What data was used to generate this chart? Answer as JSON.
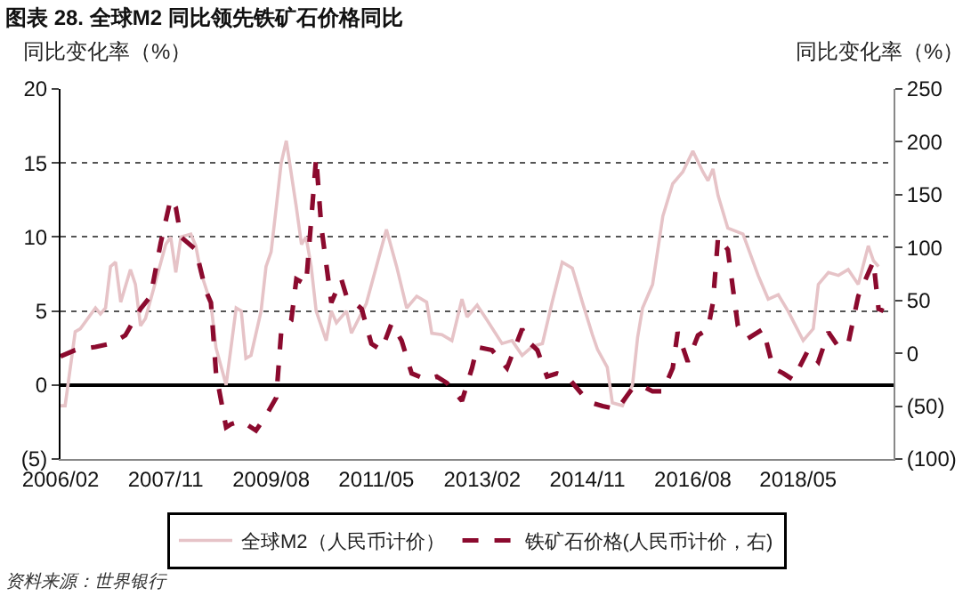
{
  "chart_data": {
    "type": "line",
    "title": "图表 28. 全球M2 同比领先铁矿石价格同比",
    "ylabel": "同比变化率（%）",
    "y2label": "同比变化率（%）",
    "annotations": [
      "资料来源：世界银行"
    ],
    "xlim": [
      "2006-02",
      "2019-12"
    ],
    "xticks": [
      {
        "value": "2006-02",
        "label": "2006/02"
      },
      {
        "value": "2007-11",
        "label": "2007/11"
      },
      {
        "value": "2009-08",
        "label": "2009/08"
      },
      {
        "value": "2011-05",
        "label": "2011/05"
      },
      {
        "value": "2013-02",
        "label": "2013/02"
      },
      {
        "value": "2014-11",
        "label": "2014/11"
      },
      {
        "value": "2016-08",
        "label": "2016/08"
      },
      {
        "value": "2018-05",
        "label": "2018/05"
      }
    ],
    "ylim": [
      -5,
      20
    ],
    "yticks": [
      {
        "value": -5,
        "label": "(5)"
      },
      0,
      5,
      10,
      15,
      20
    ],
    "y2lim": [
      -100,
      250
    ],
    "y2ticks": [
      {
        "value": -100,
        "label": "(100)"
      },
      {
        "value": -50,
        "label": "(50)"
      },
      0,
      50,
      100,
      150,
      200,
      250
    ],
    "grid": "y",
    "legend": "bottom",
    "series": [
      {
        "name": "全球M2（人民币计价）",
        "color": "#e6c3c7",
        "line_style": "solid",
        "x": [
          "2006-02",
          "2006-03",
          "2006-05",
          "2006-06",
          "2006-09",
          "2006-10",
          "2006-11",
          "2006-12",
          "2007-01",
          "2007-02",
          "2007-04",
          "2007-05",
          "2007-06",
          "2007-07",
          "2007-09",
          "2007-11",
          "2007-12",
          "2008-01",
          "2008-02",
          "2008-04",
          "2008-05",
          "2008-06",
          "2008-08",
          "2008-09",
          "2008-11",
          "2009-01",
          "2009-02",
          "2009-03",
          "2009-04",
          "2009-06",
          "2009-07",
          "2009-08",
          "2009-09",
          "2009-10",
          "2009-11",
          "2010-01",
          "2010-02",
          "2010-03",
          "2010-04",
          "2010-05",
          "2010-07",
          "2010-08",
          "2010-09",
          "2010-11",
          "2010-12",
          "2011-03",
          "2011-05",
          "2011-07",
          "2011-09",
          "2011-11",
          "2012-01",
          "2012-03",
          "2012-04",
          "2012-06",
          "2012-08",
          "2012-10",
          "2012-11",
          "2013-01",
          "2013-03",
          "2013-06",
          "2013-08",
          "2013-10",
          "2013-12",
          "2014-02",
          "2014-04",
          "2014-06",
          "2014-08",
          "2014-10",
          "2014-12",
          "2015-01",
          "2015-03",
          "2015-04",
          "2015-06",
          "2015-08",
          "2015-09",
          "2015-10",
          "2015-12",
          "2016-02",
          "2016-04",
          "2016-06",
          "2016-08",
          "2016-10",
          "2016-11",
          "2016-12",
          "2017-01",
          "2017-03",
          "2017-06",
          "2017-09",
          "2017-11",
          "2018-01",
          "2018-03",
          "2018-06",
          "2018-08",
          "2018-09",
          "2018-11",
          "2019-01",
          "2019-03",
          "2019-05",
          "2019-07",
          "2019-08",
          "2019-09"
        ],
        "values": [
          -1.4,
          -1.4,
          3.6,
          3.8,
          5.2,
          4.8,
          5.2,
          8,
          8.3,
          5.6,
          7.8,
          6.8,
          4,
          4.5,
          7,
          9.5,
          10,
          7.6,
          10,
          10.2,
          9.4,
          7.6,
          5.5,
          2.5,
          0,
          5.2,
          5,
          1.8,
          2,
          5,
          8,
          9,
          12,
          15,
          16.5,
          12,
          9.5,
          10,
          8,
          5,
          3,
          5,
          4.2,
          5,
          3.5,
          5.5,
          8,
          10.5,
          8,
          5.2,
          6,
          5.6,
          3.5,
          3.4,
          3,
          5.8,
          4.6,
          5.4,
          4.4,
          2.8,
          3,
          2,
          2.6,
          2.8,
          5.6,
          8.3,
          7.9,
          5.6,
          3.4,
          2.4,
          1.2,
          -1.2,
          -1.4,
          0,
          3.2,
          5.2,
          6.8,
          11.4,
          13.6,
          14.4,
          15.8,
          14.4,
          13.8,
          14.6,
          12.8,
          10.6,
          10.2,
          7.4,
          5.8,
          6.1,
          5,
          3,
          3.8,
          6.8,
          7.6,
          7.4,
          7.8,
          6.8,
          9.4,
          8.4,
          8
        ]
      },
      {
        "name": "铁矿石价格(人民币计价，右)",
        "color": "#8b0a2e",
        "line_style": "dashed",
        "axis": "y2",
        "x": [
          "2006-02",
          "2006-05",
          "2006-09",
          "2006-12",
          "2007-03",
          "2007-06",
          "2007-08",
          "2007-10",
          "2007-12",
          "2008-01",
          "2008-02",
          "2008-05",
          "2008-07",
          "2008-08",
          "2008-09",
          "2008-11",
          "2008-12",
          "2009-02",
          "2009-05",
          "2009-07",
          "2009-09",
          "2009-10",
          "2009-12",
          "2010-01",
          "2010-03",
          "2010-05",
          "2010-06",
          "2010-08",
          "2010-10",
          "2010-11",
          "2011-02",
          "2011-04",
          "2011-06",
          "2011-08",
          "2011-10",
          "2011-12",
          "2012-03",
          "2012-05",
          "2012-07",
          "2012-10",
          "2012-12",
          "2013-01",
          "2013-04",
          "2013-07",
          "2013-10",
          "2013-11",
          "2014-01",
          "2014-03",
          "2014-05",
          "2014-07",
          "2014-10",
          "2014-12",
          "2015-02",
          "2015-05",
          "2015-08",
          "2015-10",
          "2015-12",
          "2016-02",
          "2016-04",
          "2016-05",
          "2016-07",
          "2016-09",
          "2016-11",
          "2016-12",
          "2017-01",
          "2017-03",
          "2017-05",
          "2017-07",
          "2017-10",
          "2017-12",
          "2018-02",
          "2018-04",
          "2018-07",
          "2018-09",
          "2018-11",
          "2019-01",
          "2019-03",
          "2019-05",
          "2019-08",
          "2019-09",
          "2019-10"
        ],
        "values": [
          -3,
          3,
          6,
          9,
          17,
          42,
          54,
          104,
          146,
          138,
          110,
          98,
          59,
          48,
          -19,
          -70,
          -67,
          -64,
          -73,
          -59,
          -42,
          20,
          31,
          70,
          65,
          185,
          120,
          48,
          70,
          54,
          42,
          9,
          3,
          28,
          12,
          -19,
          -25,
          -22,
          -28,
          -45,
          -14,
          6,
          3,
          -14,
          23,
          12,
          3,
          -22,
          -19,
          -22,
          -39,
          -47,
          -50,
          -53,
          -33,
          -31,
          -36,
          -36,
          -14,
          20,
          -8,
          17,
          23,
          48,
          110,
          98,
          26,
          14,
          23,
          -14,
          -19,
          -25,
          3,
          -8,
          20,
          6,
          9,
          54,
          87,
          42,
          40
        ]
      }
    ]
  }
}
